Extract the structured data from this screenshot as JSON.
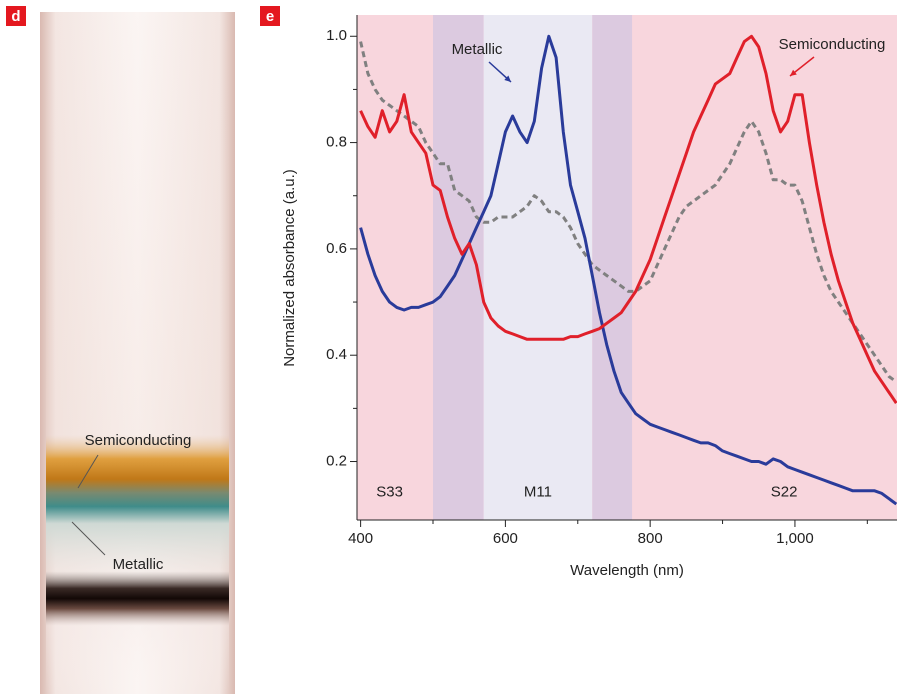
{
  "panel_d": {
    "label": "d",
    "annotations": [
      "Semiconducting",
      "Metallic"
    ]
  },
  "chart_data": {
    "type": "line",
    "panel_label": "e",
    "x_label": "Wavelength (nm)",
    "y_label": "Normalized absorbance (a.u.)",
    "xlim": [
      395,
      1141
    ],
    "ylim": [
      0.09,
      1.04
    ],
    "xticks": [
      400,
      600,
      800,
      {
        "value": 1000,
        "label": "1,000"
      }
    ],
    "xminorticks": [
      500,
      700,
      900,
      1100
    ],
    "yticks": [
      0.2,
      0.4,
      0.6,
      0.8,
      {
        "value": 1,
        "label": "1.0"
      }
    ],
    "yminorticks": [
      0.3,
      0.5,
      0.7,
      0.9
    ],
    "regions": [
      {
        "from": 395,
        "to": 1141,
        "color": "#f8d6dd"
      },
      {
        "from": 500,
        "to": 570,
        "color": "#dccae0"
      },
      {
        "from": 570,
        "to": 720,
        "color": "#eae9f3"
      },
      {
        "from": 720,
        "to": 775,
        "color": "#dccae0"
      }
    ],
    "annotations": [
      {
        "text": "S33",
        "x": 440,
        "y": 0.142,
        "color": "#e0202a"
      },
      {
        "text": "M11",
        "x": 645,
        "y": 0.142,
        "color": "#2a3b9a"
      },
      {
        "text": "S22",
        "x": 985,
        "y": 0.142,
        "color": "#e0202a"
      }
    ],
    "x": [
      400,
      410,
      420,
      430,
      440,
      450,
      460,
      470,
      480,
      490,
      500,
      510,
      520,
      530,
      540,
      550,
      560,
      570,
      580,
      590,
      600,
      610,
      620,
      630,
      640,
      650,
      660,
      670,
      680,
      690,
      700,
      710,
      720,
      730,
      740,
      750,
      760,
      770,
      780,
      790,
      800,
      810,
      820,
      830,
      840,
      850,
      860,
      870,
      880,
      890,
      900,
      910,
      920,
      930,
      940,
      950,
      960,
      970,
      980,
      990,
      1000,
      1010,
      1020,
      1030,
      1040,
      1050,
      1060,
      1070,
      1080,
      1090,
      1100,
      1110,
      1120,
      1130,
      1140
    ],
    "series": [
      {
        "color": "#808080",
        "dashed": true,
        "values": [
          0.99,
          0.93,
          0.9,
          0.88,
          0.87,
          0.86,
          0.85,
          0.84,
          0.83,
          0.8,
          0.78,
          0.76,
          0.76,
          0.71,
          0.7,
          0.69,
          0.66,
          0.65,
          0.65,
          0.66,
          0.66,
          0.66,
          0.67,
          0.68,
          0.7,
          0.69,
          0.67,
          0.67,
          0.66,
          0.64,
          0.61,
          0.59,
          0.57,
          0.56,
          0.55,
          0.54,
          0.53,
          0.52,
          0.52,
          0.53,
          0.54,
          0.57,
          0.6,
          0.63,
          0.66,
          0.68,
          0.69,
          0.7,
          0.71,
          0.72,
          0.74,
          0.76,
          0.79,
          0.82,
          0.84,
          0.82,
          0.78,
          0.73,
          0.73,
          0.72,
          0.72,
          0.69,
          0.64,
          0.59,
          0.55,
          0.52,
          0.5,
          0.48,
          0.46,
          0.44,
          0.42,
          0.4,
          0.38,
          0.36,
          0.35
        ]
      },
      {
        "name": "Metallic",
        "color": "#2a3b9a",
        "values": [
          0.64,
          0.59,
          0.55,
          0.52,
          0.5,
          0.49,
          0.485,
          0.49,
          0.49,
          0.495,
          0.5,
          0.51,
          0.53,
          0.55,
          0.58,
          0.61,
          0.64,
          0.67,
          0.7,
          0.76,
          0.82,
          0.85,
          0.82,
          0.8,
          0.84,
          0.94,
          1.0,
          0.96,
          0.82,
          0.72,
          0.67,
          0.62,
          0.55,
          0.48,
          0.42,
          0.37,
          0.33,
          0.31,
          0.29,
          0.28,
          0.27,
          0.265,
          0.26,
          0.255,
          0.25,
          0.245,
          0.24,
          0.235,
          0.235,
          0.23,
          0.22,
          0.215,
          0.21,
          0.205,
          0.2,
          0.2,
          0.195,
          0.205,
          0.2,
          0.19,
          0.185,
          0.18,
          0.175,
          0.17,
          0.165,
          0.16,
          0.155,
          0.15,
          0.145,
          0.145,
          0.145,
          0.145,
          0.14,
          0.13,
          0.12
        ]
      },
      {
        "name": "Semiconducting",
        "color": "#e0202a",
        "values": [
          0.86,
          0.83,
          0.81,
          0.86,
          0.82,
          0.84,
          0.89,
          0.82,
          0.8,
          0.78,
          0.72,
          0.71,
          0.66,
          0.62,
          0.59,
          0.61,
          0.57,
          0.5,
          0.47,
          0.455,
          0.445,
          0.44,
          0.435,
          0.43,
          0.43,
          0.43,
          0.43,
          0.43,
          0.43,
          0.435,
          0.435,
          0.44,
          0.445,
          0.45,
          0.46,
          0.47,
          0.48,
          0.5,
          0.52,
          0.55,
          0.58,
          0.62,
          0.66,
          0.7,
          0.74,
          0.78,
          0.82,
          0.85,
          0.88,
          0.91,
          0.92,
          0.93,
          0.96,
          0.99,
          1.0,
          0.98,
          0.93,
          0.86,
          0.82,
          0.84,
          0.89,
          0.89,
          0.8,
          0.72,
          0.65,
          0.59,
          0.54,
          0.5,
          0.46,
          0.43,
          0.4,
          0.37,
          0.35,
          0.33,
          0.31
        ]
      }
    ]
  }
}
